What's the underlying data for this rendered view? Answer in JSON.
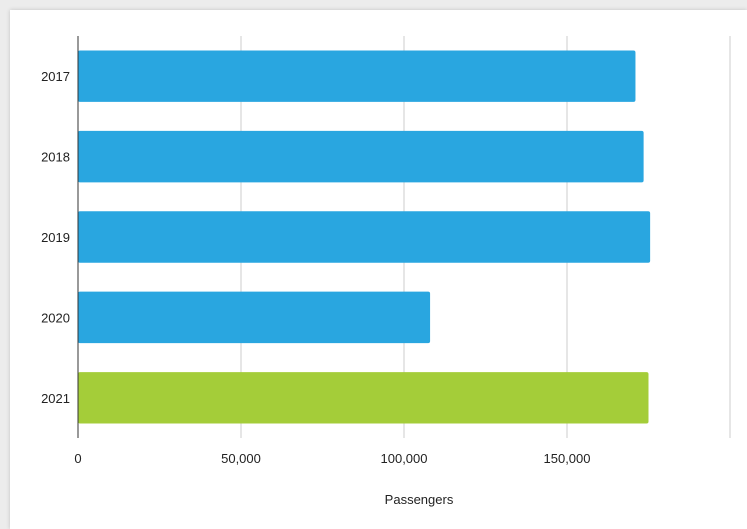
{
  "chart_data": {
    "type": "bar",
    "orientation": "horizontal",
    "title": "",
    "xlabel": "Passengers",
    "ylabel": "",
    "xlim": [
      0,
      200000
    ],
    "x_ticks": [
      0,
      50000,
      100000,
      150000
    ],
    "x_tick_labels": [
      "0",
      "50,000",
      "100,000",
      "150,000"
    ],
    "grid": true,
    "legend": "none",
    "categories": [
      "2017",
      "2018",
      "2019",
      "2020",
      "2021"
    ],
    "values": [
      171000,
      173500,
      175500,
      108000,
      175000
    ],
    "colors": [
      "#29a6e0",
      "#29a6e0",
      "#29a6e0",
      "#29a6e0",
      "#a4cd39"
    ],
    "gridline_color": "#cccccc",
    "axis_color": "#333333"
  }
}
